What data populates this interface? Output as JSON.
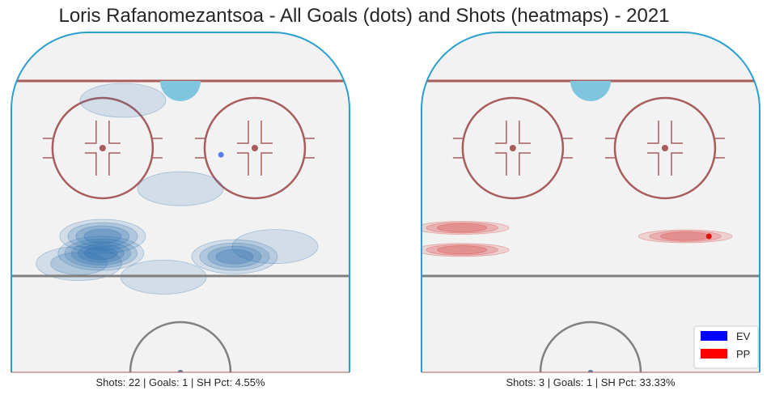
{
  "title": "Loris Rafanomezantsoa - All Goals (dots) and Shots (heatmaps) - 2021",
  "chart_data": [
    {
      "type": "heatmap",
      "panel": "left",
      "caption": "Shots: 22 | Goals: 1 | SH Pct: 4.55%",
      "stats": {
        "shots": 22,
        "goals": 1,
        "sh_pct": "4.55%"
      },
      "goals": [
        {
          "strength": "EV",
          "x": 0.62,
          "y": 0.36
        }
      ],
      "shot_density_regions": [
        {
          "strength": "EV",
          "x": 0.265,
          "y": 0.65,
          "intensity": 5
        },
        {
          "strength": "EV",
          "x": 0.27,
          "y": 0.6,
          "intensity": 4
        },
        {
          "strength": "EV",
          "x": 0.66,
          "y": 0.66,
          "intensity": 4
        },
        {
          "strength": "EV",
          "x": 0.2,
          "y": 0.68,
          "intensity": 2
        },
        {
          "strength": "EV",
          "x": 0.45,
          "y": 0.72,
          "intensity": 1
        },
        {
          "strength": "EV",
          "x": 0.78,
          "y": 0.63,
          "intensity": 1
        },
        {
          "strength": "EV",
          "x": 0.5,
          "y": 0.46,
          "intensity": 1
        },
        {
          "strength": "EV",
          "x": 0.33,
          "y": 0.2,
          "intensity": 1
        }
      ]
    },
    {
      "type": "heatmap",
      "panel": "right",
      "caption": "Shots: 3 | Goals: 1 | SH Pct: 33.33%",
      "stats": {
        "shots": 3,
        "goals": 1,
        "sh_pct": "33.33%"
      },
      "goals": [
        {
          "strength": "PP",
          "x": 0.85,
          "y": 0.6
        }
      ],
      "shot_density_regions": [
        {
          "strength": "PP",
          "x": 0.12,
          "y": 0.575,
          "intensity": 3
        },
        {
          "strength": "PP",
          "x": 0.12,
          "y": 0.64,
          "intensity": 3
        },
        {
          "strength": "PP",
          "x": 0.78,
          "y": 0.6,
          "intensity": 3
        }
      ]
    }
  ],
  "legend": {
    "placement": "lower-right",
    "items": [
      {
        "label": "EV",
        "color": "#0000ff"
      },
      {
        "label": "PP",
        "color": "#ff0000"
      }
    ]
  },
  "colors": {
    "ev_heat": "#2a6fb0",
    "pp_heat": "#d62a2a",
    "boards": "#2a9fd0",
    "rink_lines": "#a85c5c",
    "crease": "#7fc5e0",
    "center_line": "#808080",
    "ice": "#f2f2f2"
  }
}
